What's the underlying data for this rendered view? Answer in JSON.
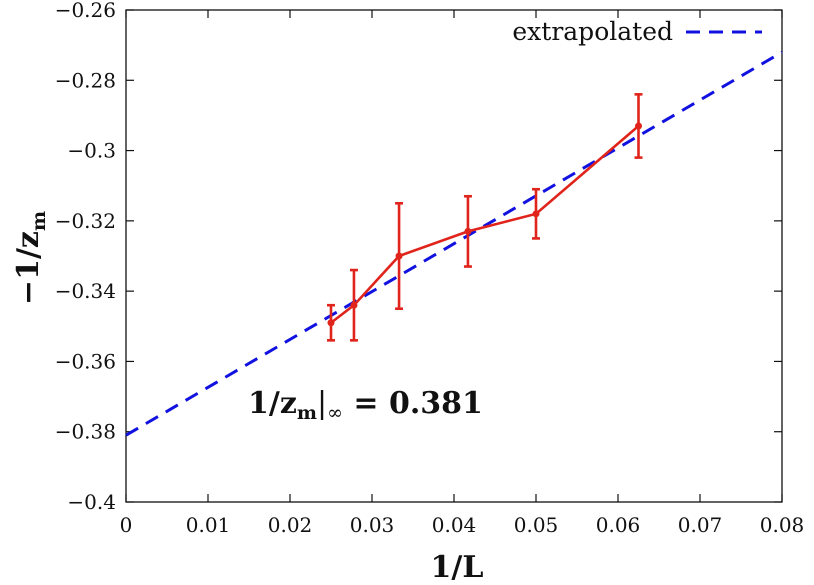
{
  "chart_data": {
    "type": "line",
    "xlabel_main": "1/L",
    "ylabel_main": "−1/z",
    "ylabel_sub": "m",
    "xlim": [
      0,
      0.08
    ],
    "ylim": [
      -0.4,
      -0.26
    ],
    "x_ticks": [
      0,
      0.01,
      0.02,
      0.03,
      0.04,
      0.05,
      0.06,
      0.07,
      0.08
    ],
    "x_tick_labels": [
      "0",
      "0.01",
      "0.02",
      "0.03",
      "0.04",
      "0.05",
      "0.06",
      "0.07",
      "0.08"
    ],
    "y_ticks": [
      -0.4,
      -0.38,
      -0.36,
      -0.34,
      -0.32,
      -0.3,
      -0.28,
      -0.26
    ],
    "y_tick_labels": [
      "−0.4",
      "−0.38",
      "−0.36",
      "−0.34",
      "−0.32",
      "−0.3",
      "−0.28",
      "−0.26"
    ],
    "grid": false,
    "legend_position": "top-right",
    "series": [
      {
        "kind": "errorbar-line",
        "color": "#e0241b",
        "x": [
          0.025,
          0.0278,
          0.0333,
          0.0417,
          0.05,
          0.0625
        ],
        "y": [
          -0.349,
          -0.344,
          -0.33,
          -0.323,
          -0.318,
          -0.293
        ],
        "yerr_low": [
          0.005,
          0.01,
          0.015,
          0.01,
          0.007,
          0.009
        ],
        "yerr_high": [
          0.005,
          0.01,
          0.015,
          0.01,
          0.007,
          0.009
        ]
      },
      {
        "name": "extrapolated",
        "kind": "dashed-line",
        "color": "#1212e0",
        "x": [
          0,
          0.08
        ],
        "y": [
          -0.381,
          -0.272
        ]
      }
    ],
    "annotation": {
      "main": "1/z",
      "sub": "m",
      "after_sub": "|",
      "sub2": "∞",
      "tail": " = 0.381",
      "x": 0.015,
      "y": -0.367
    }
  }
}
